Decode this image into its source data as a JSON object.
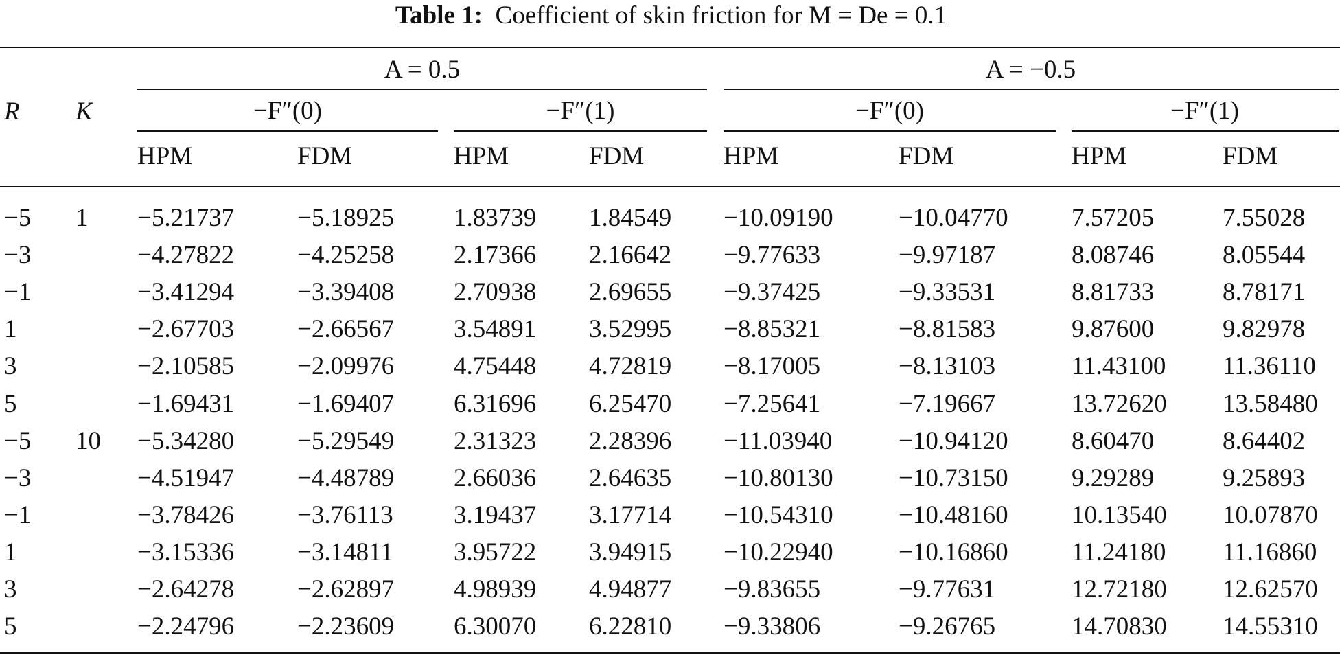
{
  "caption": {
    "label": "Table 1:",
    "text": "Coefficient of skin friction for M = De = 0.1"
  },
  "table": {
    "header": {
      "r": "R",
      "k": "K",
      "groups": [
        "A = 0.5",
        "A = −0.5"
      ],
      "subgroups": [
        "−F″(0)",
        "−F″(1)",
        "−F″(0)",
        "−F″(1)"
      ],
      "methods": [
        "HPM",
        "FDM",
        "HPM",
        "FDM",
        "HPM",
        "FDM",
        "HPM",
        "FDM"
      ]
    },
    "rows": [
      [
        "−5",
        "1",
        "−5.21737",
        "−5.18925",
        "1.83739",
        "1.84549",
        "−10.09190",
        "−10.04770",
        "7.57205",
        "7.55028"
      ],
      [
        "−3",
        null,
        "−4.27822",
        "−4.25258",
        "2.17366",
        "2.16642",
        "−9.77633",
        "−9.97187",
        "8.08746",
        "8.05544"
      ],
      [
        "−1",
        null,
        "−3.41294",
        "−3.39408",
        "2.70938",
        "2.69655",
        "−9.37425",
        "−9.33531",
        "8.81733",
        "8.78171"
      ],
      [
        "1",
        null,
        "−2.67703",
        "−2.66567",
        "3.54891",
        "3.52995",
        "−8.85321",
        "−8.81583",
        "9.87600",
        "9.82978"
      ],
      [
        "3",
        null,
        "−2.10585",
        "−2.09976",
        "4.75448",
        "4.72819",
        "−8.17005",
        "−8.13103",
        "11.43100",
        "11.36110"
      ],
      [
        "5",
        null,
        "−1.69431",
        "−1.69407",
        "6.31696",
        "6.25470",
        "−7.25641",
        "−7.19667",
        "13.72620",
        "13.58480"
      ],
      [
        "−5",
        "10",
        "−5.34280",
        "−5.29549",
        "2.31323",
        "2.28396",
        "−11.03940",
        "−10.94120",
        "8.60470",
        "8.64402"
      ],
      [
        "−3",
        null,
        "−4.51947",
        "−4.48789",
        "2.66036",
        "2.64635",
        "−10.80130",
        "−10.73150",
        "9.29289",
        "9.25893"
      ],
      [
        "−1",
        null,
        "−3.78426",
        "−3.76113",
        "3.19437",
        "3.17714",
        "−10.54310",
        "−10.48160",
        "10.13540",
        "10.07870"
      ],
      [
        "1",
        null,
        "−3.15336",
        "−3.14811",
        "3.95722",
        "3.94915",
        "−10.22940",
        "−10.16860",
        "11.24180",
        "11.16860"
      ],
      [
        "3",
        null,
        "−2.64278",
        "−2.62897",
        "4.98939",
        "4.94877",
        "−9.83655",
        "−9.77631",
        "12.72180",
        "12.62570"
      ],
      [
        "5",
        null,
        "−2.24796",
        "−2.23609",
        "6.30070",
        "6.22810",
        "−9.33806",
        "−9.26765",
        "14.70830",
        "14.55310"
      ]
    ]
  }
}
